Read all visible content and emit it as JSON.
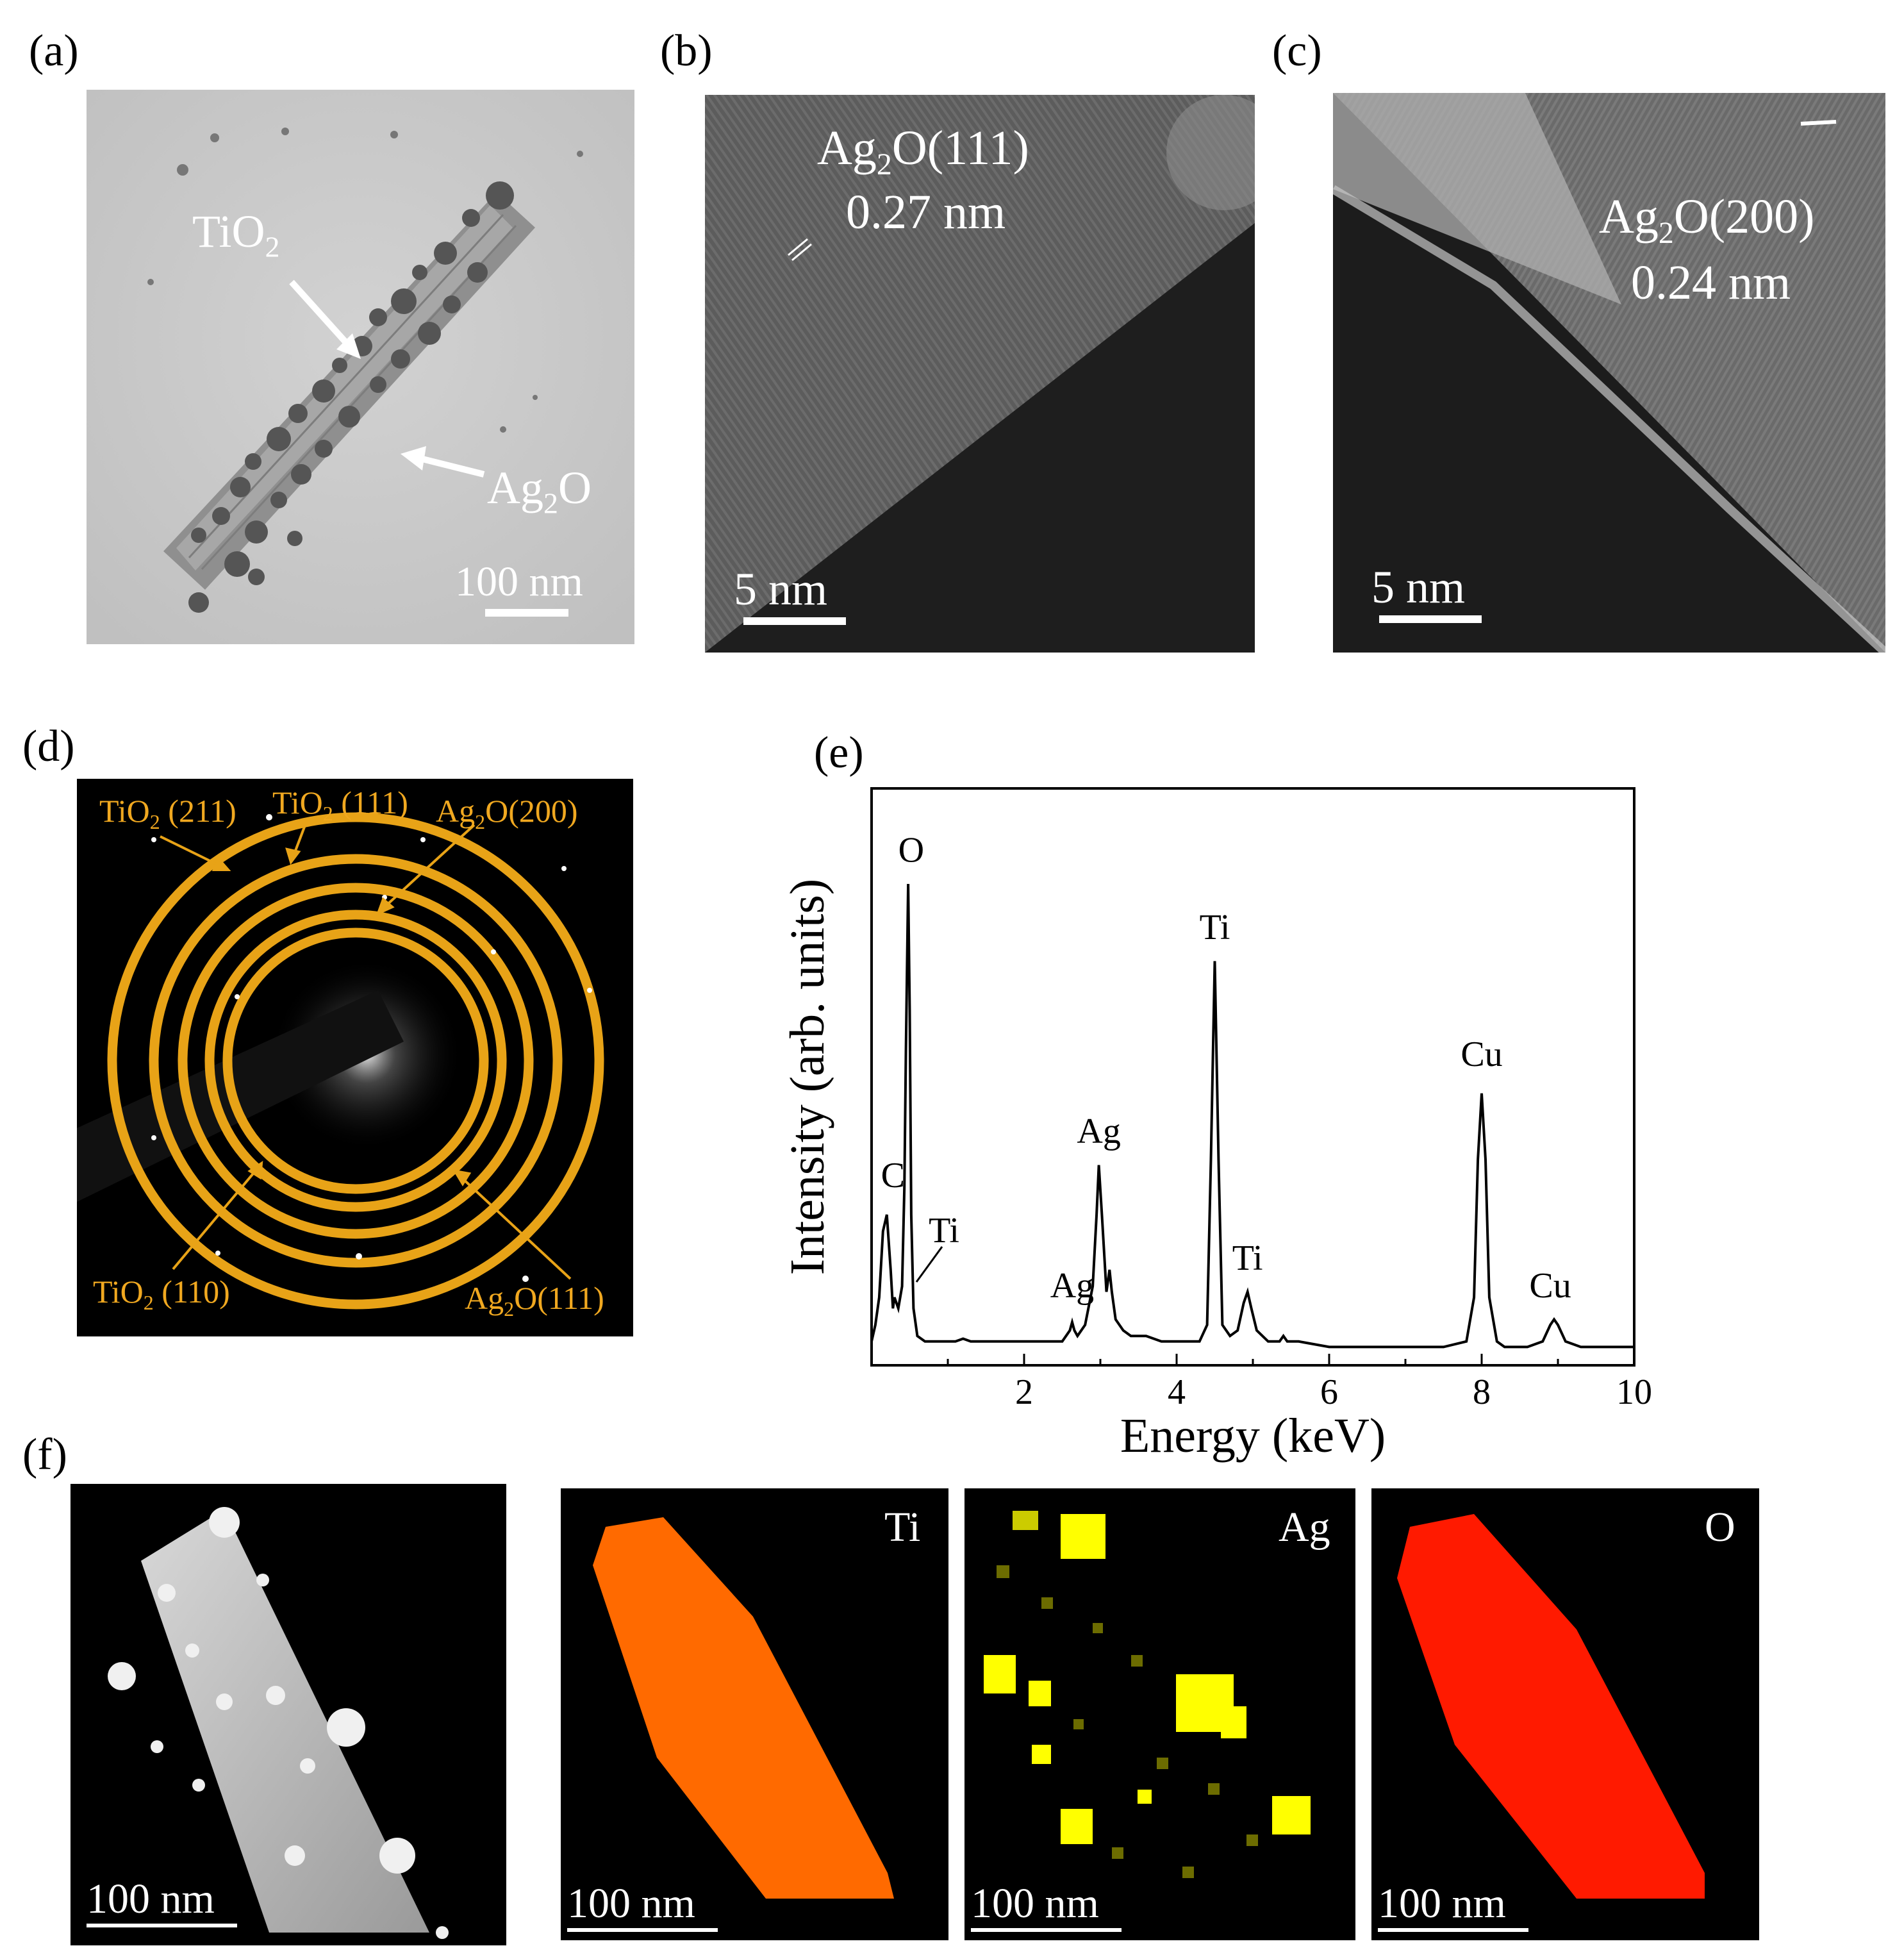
{
  "panels": {
    "a": {
      "label": "(a)",
      "tio2_pre": "TiO",
      "tio2_sub": "2",
      "ag2o_pre": "Ag",
      "ag2o_sub": "2",
      "ag2o_post": "O",
      "scale": "100 nm"
    },
    "b": {
      "label": "(b)",
      "plane_pre": "Ag",
      "plane_sub": "2",
      "plane_post": "O(111)",
      "spacing": "0.27 nm",
      "scale": "5 nm"
    },
    "c": {
      "label": "(c)",
      "plane_pre": "Ag",
      "plane_sub": "2",
      "plane_post": "O(200)",
      "spacing": "0.24 nm",
      "scale": "5 nm"
    },
    "d": {
      "label": "(d)",
      "rings": [
        {
          "pre": "TiO",
          "sub": "2",
          "post": " (211)"
        },
        {
          "pre": "TiO",
          "sub": "2",
          "post": " (111)"
        },
        {
          "pre": "Ag",
          "sub": "2",
          "post": "O(200)"
        },
        {
          "pre": "TiO",
          "sub": "2",
          "post": " (110)"
        },
        {
          "pre": "Ag",
          "sub": "2",
          "post": "O(111)"
        }
      ],
      "ring_color": "#e8a317"
    },
    "e": {
      "label": "(e)"
    },
    "f": {
      "label": "(f)",
      "maps": [
        {
          "element": "Ti",
          "color": "#ff6a00"
        },
        {
          "element": "Ag",
          "color": "#ffff00"
        },
        {
          "element": "O",
          "color": "#ff1a00"
        }
      ],
      "scale": "100 nm"
    }
  },
  "chart_data": {
    "type": "line",
    "xlabel": "Energy (keV)",
    "ylabel": "Intensity (arb. units)",
    "xlim": [
      0,
      10
    ],
    "x_ticks": [
      2,
      4,
      6,
      8,
      10
    ],
    "x": [
      0.0,
      0.05,
      0.1,
      0.15,
      0.2,
      0.25,
      0.28,
      0.3,
      0.35,
      0.4,
      0.43,
      0.45,
      0.48,
      0.5,
      0.52,
      0.55,
      0.6,
      0.7,
      0.9,
      1.1,
      1.2,
      1.3,
      1.5,
      1.8,
      2.0,
      2.2,
      2.5,
      2.6,
      2.63,
      2.66,
      2.7,
      2.8,
      2.9,
      2.95,
      2.98,
      3.02,
      3.08,
      3.12,
      3.15,
      3.2,
      3.3,
      3.4,
      3.6,
      3.7,
      3.8,
      4.0,
      4.3,
      4.4,
      4.45,
      4.5,
      4.55,
      4.6,
      4.7,
      4.8,
      4.88,
      4.93,
      4.98,
      5.05,
      5.2,
      5.35,
      5.4,
      5.45,
      5.6,
      6.0,
      6.5,
      7.0,
      7.5,
      7.8,
      7.9,
      7.95,
      8.0,
      8.05,
      8.1,
      8.2,
      8.3,
      8.6,
      8.8,
      8.9,
      8.95,
      9.0,
      9.1,
      9.3,
      9.6,
      10.0
    ],
    "series": [
      {
        "values": [
          0.02,
          0.05,
          0.1,
          0.22,
          0.25,
          0.15,
          0.08,
          0.1,
          0.08,
          0.12,
          0.3,
          0.55,
          0.85,
          0.62,
          0.25,
          0.08,
          0.03,
          0.02,
          0.02,
          0.02,
          0.025,
          0.02,
          0.02,
          0.02,
          0.02,
          0.02,
          0.02,
          0.04,
          0.055,
          0.04,
          0.03,
          0.05,
          0.12,
          0.25,
          0.34,
          0.25,
          0.11,
          0.15,
          0.11,
          0.06,
          0.04,
          0.03,
          0.03,
          0.025,
          0.02,
          0.02,
          0.02,
          0.05,
          0.35,
          0.71,
          0.35,
          0.05,
          0.03,
          0.04,
          0.09,
          0.11,
          0.08,
          0.04,
          0.02,
          0.02,
          0.03,
          0.02,
          0.02,
          0.01,
          0.01,
          0.01,
          0.01,
          0.02,
          0.1,
          0.35,
          0.47,
          0.35,
          0.1,
          0.02,
          0.01,
          0.01,
          0.02,
          0.05,
          0.06,
          0.05,
          0.02,
          0.01,
          0.01,
          0.01
        ]
      }
    ],
    "annotations": [
      {
        "text": "O",
        "x": 0.52,
        "y": 0.89
      },
      {
        "text": "C",
        "x": 0.28,
        "y": 0.3
      },
      {
        "text": "Ti",
        "x": 0.95,
        "y": 0.2
      },
      {
        "text": "Ti",
        "x": 4.5,
        "y": 0.75
      },
      {
        "text": "Ag",
        "x": 2.98,
        "y": 0.38
      },
      {
        "text": "Ag",
        "x": 2.63,
        "y": 0.1
      },
      {
        "text": "Ti",
        "x": 4.93,
        "y": 0.15
      },
      {
        "text": "Cu",
        "x": 8.0,
        "y": 0.52
      },
      {
        "text": "Cu",
        "x": 8.9,
        "y": 0.1
      }
    ]
  }
}
